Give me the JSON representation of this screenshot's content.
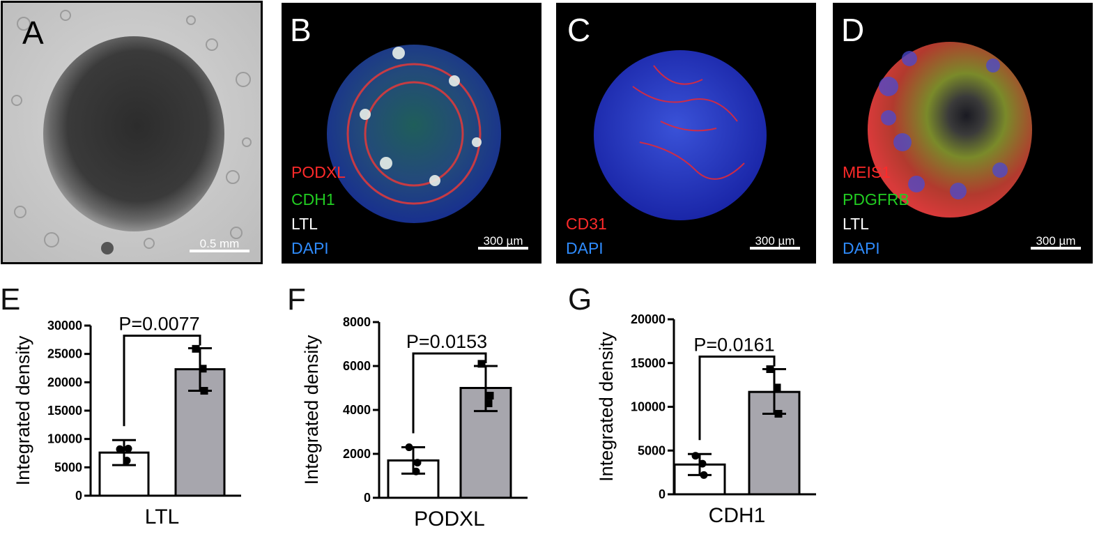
{
  "panels": {
    "A": {
      "letter": "A",
      "scale": "0.5 mm"
    },
    "B": {
      "letter": "B",
      "scale": "300 µm",
      "channels": [
        {
          "label": "PODXL",
          "color": "#ff2a2a"
        },
        {
          "label": "CDH1",
          "color": "#22cc22"
        },
        {
          "label": "LTL",
          "color": "#ffffff"
        },
        {
          "label": "DAPI",
          "color": "#2f8cff"
        }
      ]
    },
    "C": {
      "letter": "C",
      "scale": "300 µm",
      "channels": [
        {
          "label": "CD31",
          "color": "#ff2a2a"
        },
        {
          "label": "DAPI",
          "color": "#2f8cff"
        }
      ]
    },
    "D": {
      "letter": "D",
      "scale": "300 µm",
      "channels": [
        {
          "label": "MEIS1",
          "color": "#ff2a2a"
        },
        {
          "label": "PDGFRB",
          "color": "#22cc22"
        },
        {
          "label": "LTL",
          "color": "#ffffff"
        },
        {
          "label": "DAPI",
          "color": "#2f8cff"
        }
      ]
    }
  },
  "chart_data": [
    {
      "type": "bar",
      "panel": "E",
      "xlabel": "LTL",
      "ylabel": "Integrated density",
      "ylim": [
        0,
        30000
      ],
      "yticks": [
        0,
        5000,
        10000,
        15000,
        20000,
        25000,
        30000
      ],
      "bars": [
        {
          "mean": 7600,
          "sd_low": 5400,
          "sd_high": 9800,
          "fill": "#ffffff",
          "points": [
            8200,
            6200,
            8300
          ],
          "marker": "circle"
        },
        {
          "mean": 22300,
          "sd_low": 18500,
          "sd_high": 26000,
          "fill": "#a7a6ad",
          "points": [
            25900,
            22400,
            18500
          ],
          "marker": "square"
        }
      ],
      "annotation": "P=0.0077"
    },
    {
      "type": "bar",
      "panel": "F",
      "xlabel": "PODXL",
      "ylabel": "Integrated density",
      "ylim": [
        0,
        8000
      ],
      "yticks": [
        0,
        2000,
        4000,
        6000,
        8000
      ],
      "bars": [
        {
          "mean": 1700,
          "sd_low": 1100,
          "sd_high": 2300,
          "fill": "#ffffff",
          "points": [
            2300,
            1200,
            1600
          ],
          "marker": "circle"
        },
        {
          "mean": 5000,
          "sd_low": 3950,
          "sd_high": 6000,
          "fill": "#a7a6ad",
          "points": [
            6100,
            4300,
            4650
          ],
          "marker": "square"
        }
      ],
      "annotation": "P=0.0153"
    },
    {
      "type": "bar",
      "panel": "G",
      "xlabel": "CDH1",
      "ylabel": "Integrated density",
      "ylim": [
        0,
        20000
      ],
      "yticks": [
        0,
        5000,
        10000,
        15000,
        20000
      ],
      "bars": [
        {
          "mean": 3400,
          "sd_low": 2200,
          "sd_high": 4600,
          "fill": "#ffffff",
          "points": [
            4400,
            3500,
            2200
          ],
          "marker": "circle"
        },
        {
          "mean": 11700,
          "sd_low": 9200,
          "sd_high": 14300,
          "fill": "#a7a6ad",
          "points": [
            14300,
            12200,
            9200
          ],
          "marker": "square"
        }
      ],
      "annotation": "P=0.0161"
    }
  ]
}
